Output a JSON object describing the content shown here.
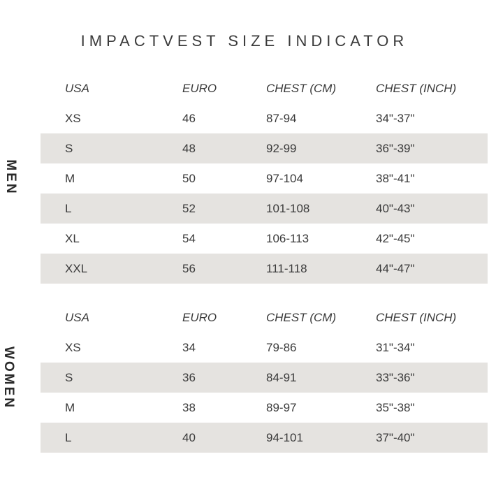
{
  "title": "IMPACTVEST SIZE INDICATOR",
  "colors": {
    "text": "#3a3a3a",
    "row_shade": "#e5e3e0",
    "background": "#ffffff"
  },
  "men": {
    "label": "MEN",
    "header": [
      "USA",
      "EURO",
      "CHEST (CM)",
      "CHEST (INCH)"
    ],
    "rows": [
      [
        "XS",
        "46",
        "87-94",
        "34\"-37\""
      ],
      [
        "S",
        "48",
        "92-99",
        "36\"-39\""
      ],
      [
        "M",
        "50",
        "97-104",
        "38\"-41\""
      ],
      [
        "L",
        "52",
        "101-108",
        "40\"-43\""
      ],
      [
        "XL",
        "54",
        "106-113",
        "42\"-45\""
      ],
      [
        "XXL",
        "56",
        "111-118",
        "44\"-47\""
      ]
    ]
  },
  "women": {
    "label": "WOMEN",
    "header": [
      "USA",
      "EURO",
      "CHEST (CM)",
      "CHEST (INCH)"
    ],
    "rows": [
      [
        "XS",
        "34",
        "79-86",
        "31\"-34\""
      ],
      [
        "S",
        "36",
        "84-91",
        "33\"-36\""
      ],
      [
        "M",
        "38",
        "89-97",
        "35\"-38\""
      ],
      [
        "L",
        "40",
        "94-101",
        "37\"-40\""
      ]
    ]
  }
}
